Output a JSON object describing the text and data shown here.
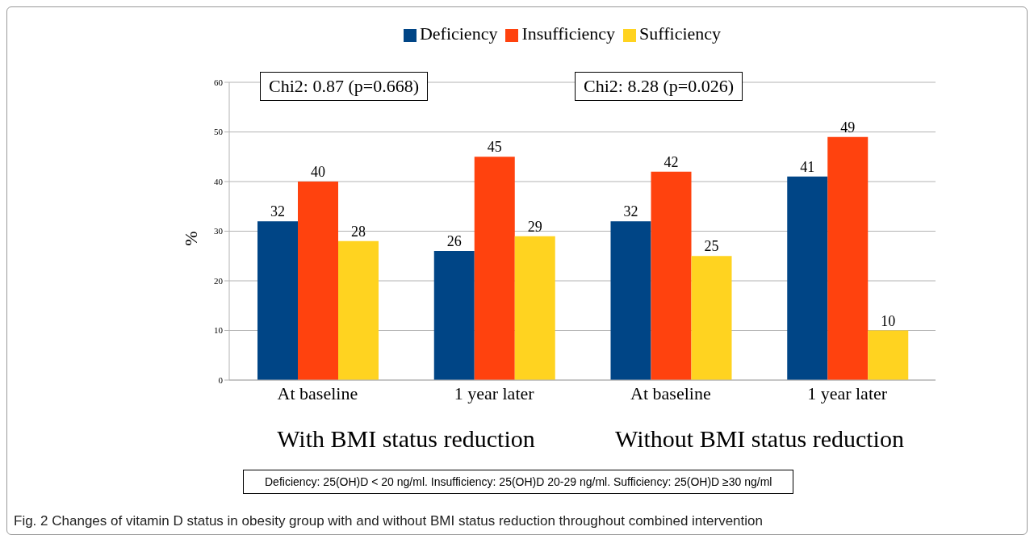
{
  "chart_data": {
    "type": "bar",
    "categories": [
      "At baseline",
      "1 year later",
      "At baseline",
      "1 year later"
    ],
    "series": [
      {
        "name": "Deficiency",
        "color": "#004586",
        "values": [
          32,
          26,
          32,
          41
        ]
      },
      {
        "name": "Insufficiency",
        "color": "#ff420e",
        "values": [
          40,
          45,
          42,
          49
        ]
      },
      {
        "name": "Sufficiency",
        "color": "#ffd320",
        "values": [
          28,
          29,
          25,
          10
        ]
      }
    ],
    "ylabel": "%",
    "ylim": [
      0,
      60
    ],
    "yticks": [
      0,
      10,
      20,
      30,
      40,
      50,
      60
    ],
    "grid": "y",
    "legend": "top",
    "data_labels": true,
    "annotations": [
      "Chi2: 0.87 (p=0.668)",
      "Chi2: 8.28 (p=0.026)",
      "With BMI status reduction",
      "Without BMI status reduction",
      "Deficiency: 25(OH)D < 20 ng/ml. Insufficiency: 25(OH)D 20-29 ng/ml. Sufficiency: 25(OH)D ≥30 ng/ml",
      "Fig. 2 Changes of vitamin D status in obesity group with and without BMI status reduction throughout combined intervention"
    ]
  }
}
